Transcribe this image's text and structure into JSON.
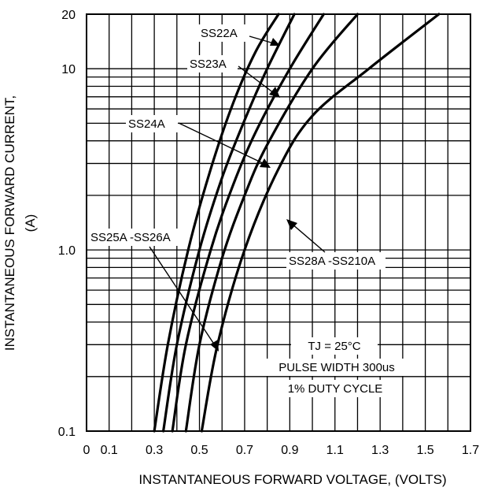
{
  "chart_data": {
    "type": "line",
    "xlabel": "INSTANTANEOUS FORWARD VOLTAGE, (VOLTS)",
    "ylabel_line1": "INSTANTANEOUS FORWARD CURRENT,",
    "ylabel_line2": "(A)",
    "xlim": [
      0,
      1.7
    ],
    "ylim": [
      0.1,
      20
    ],
    "y_scale": "log",
    "grid": true,
    "x_tick_labels": [
      "0",
      "0.1",
      "0.3",
      "0.5",
      "0.7",
      "0.9",
      "1.1",
      "1.3",
      "1.5",
      "1.7"
    ],
    "x_tick_values": [
      0,
      0.1,
      0.3,
      0.5,
      0.7,
      0.9,
      1.1,
      1.3,
      1.5,
      1.7
    ],
    "y_tick_labels": [
      "0.1",
      "1.0",
      "10",
      "20"
    ],
    "y_tick_values": [
      0.1,
      1.0,
      10,
      20
    ],
    "series": [
      {
        "name": "SS22A",
        "x": [
          0.3,
          0.36,
          0.45,
          0.55,
          0.65,
          0.75,
          0.85
        ],
        "y": [
          0.1,
          0.3,
          1.0,
          2.8,
          6.5,
          12.5,
          20
        ]
      },
      {
        "name": "SS23A",
        "x": [
          0.34,
          0.4,
          0.5,
          0.6,
          0.7,
          0.8,
          0.92
        ],
        "y": [
          0.1,
          0.3,
          1.0,
          2.5,
          5.2,
          10.0,
          20
        ]
      },
      {
        "name": "SS24A",
        "x": [
          0.38,
          0.44,
          0.55,
          0.65,
          0.75,
          0.9,
          1.05
        ],
        "y": [
          0.1,
          0.3,
          1.0,
          2.3,
          4.5,
          10.0,
          20
        ]
      },
      {
        "name": "SS25A -SS26A",
        "x": [
          0.44,
          0.5,
          0.6,
          0.7,
          0.8,
          1.0,
          1.2
        ],
        "y": [
          0.1,
          0.3,
          0.9,
          2.0,
          3.8,
          10.0,
          20
        ]
      },
      {
        "name": "SS28A -SS210A",
        "x": [
          0.51,
          0.58,
          0.7,
          0.85,
          1.0,
          1.25,
          1.56
        ],
        "y": [
          0.1,
          0.3,
          1.0,
          2.8,
          5.5,
          10.0,
          20
        ]
      }
    ],
    "annotations": {
      "label_22": "SS22A",
      "label_23": "SS23A",
      "label_24": "SS24A",
      "label_25": "SS25A -SS26A",
      "label_28": "SS28A -SS210A",
      "cond_tj": "TJ = 25°C",
      "cond_pulse": "PULSE WIDTH 300us",
      "cond_duty": "1% DUTY CYCLE"
    }
  }
}
